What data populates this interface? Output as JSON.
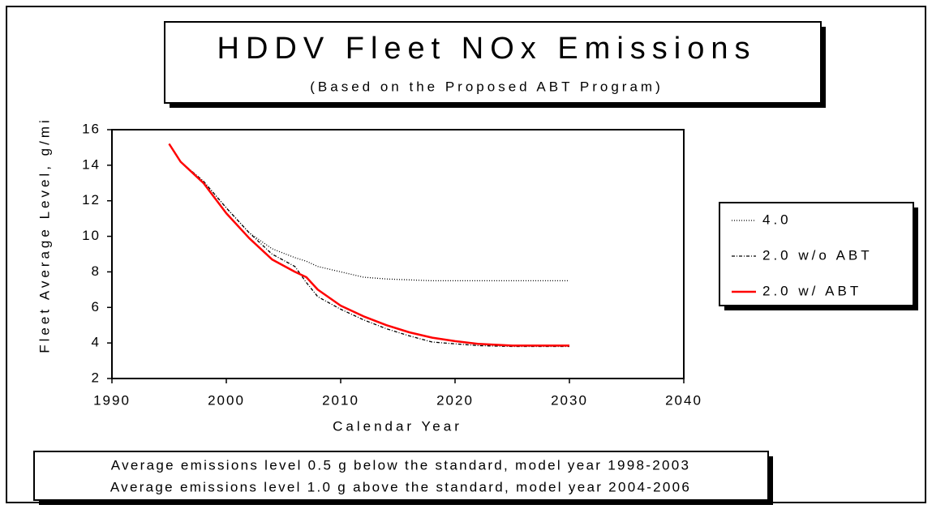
{
  "chart_data": {
    "type": "line",
    "title": "HDDV Fleet NOx Emissions",
    "subtitle": "(Based on the Proposed ABT Program)",
    "x_label": "Calendar Year",
    "y_label": "Fleet Average Level, g/mi",
    "x": [
      1995,
      1996,
      1998,
      2000,
      2002,
      2004,
      2006,
      2007,
      2008,
      2010,
      2012,
      2014,
      2016,
      2018,
      2020,
      2022,
      2025,
      2030
    ],
    "series": [
      {
        "name": "4.0",
        "color": "#000000",
        "dash": "1,2",
        "width": 1.3,
        "values": [
          15.2,
          14.2,
          13.1,
          11.6,
          10.2,
          9.3,
          8.8,
          8.6,
          8.3,
          8.0,
          7.7,
          7.6,
          7.55,
          7.5,
          7.5,
          7.5,
          7.5,
          7.5
        ]
      },
      {
        "name": "2.0 w/o ABT",
        "color": "#000000",
        "dash": "4,2,1,2",
        "width": 1.3,
        "values": [
          15.2,
          14.2,
          13.1,
          11.6,
          10.2,
          9.0,
          8.3,
          7.4,
          6.6,
          5.9,
          5.3,
          4.8,
          4.4,
          4.05,
          3.95,
          3.85,
          3.8,
          3.8
        ]
      },
      {
        "name": "2.0 w/ ABT",
        "color": "#ff0000",
        "dash": "none",
        "width": 2.5,
        "values": [
          15.2,
          14.2,
          13.0,
          11.3,
          9.9,
          8.7,
          8.0,
          7.7,
          7.0,
          6.1,
          5.5,
          5.0,
          4.6,
          4.3,
          4.1,
          3.95,
          3.85,
          3.85
        ]
      }
    ],
    "xlim": [
      1990,
      2040
    ],
    "xticks": [
      1990,
      2000,
      2010,
      2020,
      2030,
      2040
    ],
    "ylim": [
      2,
      16
    ],
    "yticks": [
      2,
      4,
      6,
      8,
      10,
      12,
      14,
      16
    ],
    "grid": false,
    "legend": "right",
    "annotations": [
      "Average emissions level 0.5 g below the standard, model year 1998-2003",
      "Average emissions level 1.0 g above the standard, model year 2004-2006"
    ]
  }
}
